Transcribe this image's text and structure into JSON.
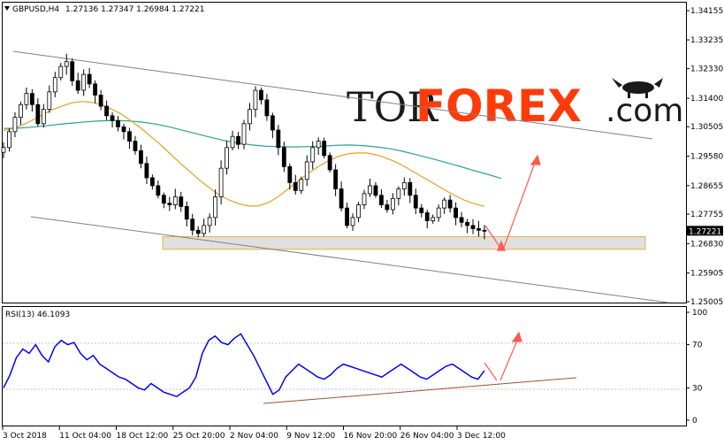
{
  "header": {
    "symbol_timeframe": "GBPUSD,H4",
    "ohlc": "1.27136 1.27347 1.26984 1.27221"
  },
  "rsi_header": "RSI(13) 46.1093",
  "watermark": {
    "part1": "TOR",
    "part2": "FOREX",
    "part3": ".com"
  },
  "colors": {
    "up_candle": "#000000",
    "ma_fast": "#e6a020",
    "ma_slow": "#2aa198",
    "rsi": "#0000ff",
    "channel": "#808080",
    "support_zone": "#e0e0e0",
    "support_border": "#e8b04a",
    "forecast_arrow": "#ff5a4e",
    "rsi_trendline": "#a0522d",
    "price_tag_bg": "#000000"
  },
  "chart_data": [
    {
      "type": "candlestick",
      "title": "GBPUSD,H4",
      "ylim": [
        1.25005,
        1.34155
      ],
      "y_ticks": [
        "1.34155",
        "1.33235",
        "1.32330",
        "1.31400",
        "1.30505",
        "1.29580",
        "1.28655",
        "1.27755",
        "1.26830",
        "1.25905",
        "1.25005"
      ],
      "x_ticks": [
        "3 Oct 2018",
        "11 Oct 04:00",
        "18 Oct 12:00",
        "25 Oct 20:00",
        "2 Nov 04:00",
        "9 Nov 12:00",
        "16 Nov 20:00",
        "26 Nov 04:00",
        "3 Dec 12:00"
      ],
      "current_price": "1.27221",
      "close_path": [
        1.2985,
        1.3035,
        1.308,
        1.312,
        1.3155,
        1.312,
        1.306,
        1.3105,
        1.316,
        1.3205,
        1.324,
        1.3255,
        1.3195,
        1.3165,
        1.3215,
        1.3185,
        1.315,
        1.3115,
        1.3085,
        1.307,
        1.305,
        1.3035,
        1.3005,
        1.2975,
        1.2935,
        1.289,
        1.2865,
        1.2835,
        1.281,
        1.2805,
        1.283,
        1.28,
        1.276,
        1.2725,
        1.2715,
        1.274,
        1.2765,
        1.283,
        1.292,
        1.2985,
        1.302,
        1.2995,
        1.306,
        1.3105,
        1.3165,
        1.3135,
        1.3085,
        1.304,
        1.2985,
        1.2925,
        1.2875,
        1.285,
        1.2885,
        1.294,
        1.2985,
        1.3005,
        1.296,
        1.2915,
        1.2855,
        1.2795,
        1.274,
        1.2765,
        1.2805,
        1.284,
        1.2865,
        1.2835,
        1.2805,
        1.279,
        1.2825,
        1.2855,
        1.2875,
        1.2835,
        1.2795,
        1.278,
        1.2755,
        1.2765,
        1.2795,
        1.282,
        1.2795,
        1.2765,
        1.275,
        1.274,
        1.273,
        1.2725,
        1.2722
      ],
      "ma_fast": [
        1.3038,
        1.3045,
        1.3057,
        1.3072,
        1.3089,
        1.3104,
        1.3116,
        1.3126,
        1.313,
        1.3127,
        1.3119,
        1.3106,
        1.309,
        1.3069,
        1.3046,
        1.302,
        1.2994,
        1.2965,
        1.2936,
        1.2909,
        1.2882,
        1.2858,
        1.2836,
        1.282,
        1.2808,
        1.2801,
        1.2802,
        1.2812,
        1.2831,
        1.2855,
        1.2879,
        1.2903,
        1.2924,
        1.2942,
        1.2956,
        1.2965,
        1.2968,
        1.2968,
        1.2962,
        1.2952,
        1.2939,
        1.2923,
        1.2905,
        1.2887,
        1.2869,
        1.2851,
        1.2834,
        1.2819,
        1.2808,
        1.28
      ],
      "ma_slow": [
        1.3045,
        1.3046,
        1.3049,
        1.3053,
        1.3058,
        1.3062,
        1.3066,
        1.3069,
        1.307,
        1.3069,
        1.3065,
        1.3059,
        1.305,
        1.3039,
        1.3028,
        1.3017,
        1.3007,
        1.2999,
        1.2993,
        1.2989,
        1.2988,
        1.2987,
        1.2988,
        1.2989,
        1.2992,
        1.2993,
        1.2991,
        1.2987,
        1.2981,
        1.2972,
        1.2961,
        1.295,
        1.2938,
        1.2926,
        1.2913,
        1.2901,
        1.2888
      ],
      "support_zone": [
        1.2665,
        1.2705
      ]
    },
    {
      "type": "line",
      "title": "RSI(13) 46.1093",
      "ylim": [
        0,
        100
      ],
      "y_ticks": [
        "100",
        "70",
        "30",
        "0"
      ],
      "values": [
        30,
        42,
        58,
        66,
        62,
        70,
        60,
        54,
        68,
        74,
        70,
        72,
        62,
        56,
        60,
        52,
        48,
        44,
        40,
        38,
        34,
        30,
        28,
        34,
        30,
        26,
        24,
        22,
        26,
        30,
        40,
        62,
        74,
        78,
        72,
        70,
        76,
        80,
        70,
        60,
        48,
        36,
        24,
        28,
        40,
        46,
        52,
        48,
        44,
        40,
        38,
        42,
        48,
        52,
        50,
        48,
        46,
        44,
        42,
        40,
        44,
        48,
        52,
        48,
        44,
        40,
        38,
        42,
        46,
        50,
        52,
        48,
        44,
        40,
        38,
        46
      ]
    }
  ]
}
